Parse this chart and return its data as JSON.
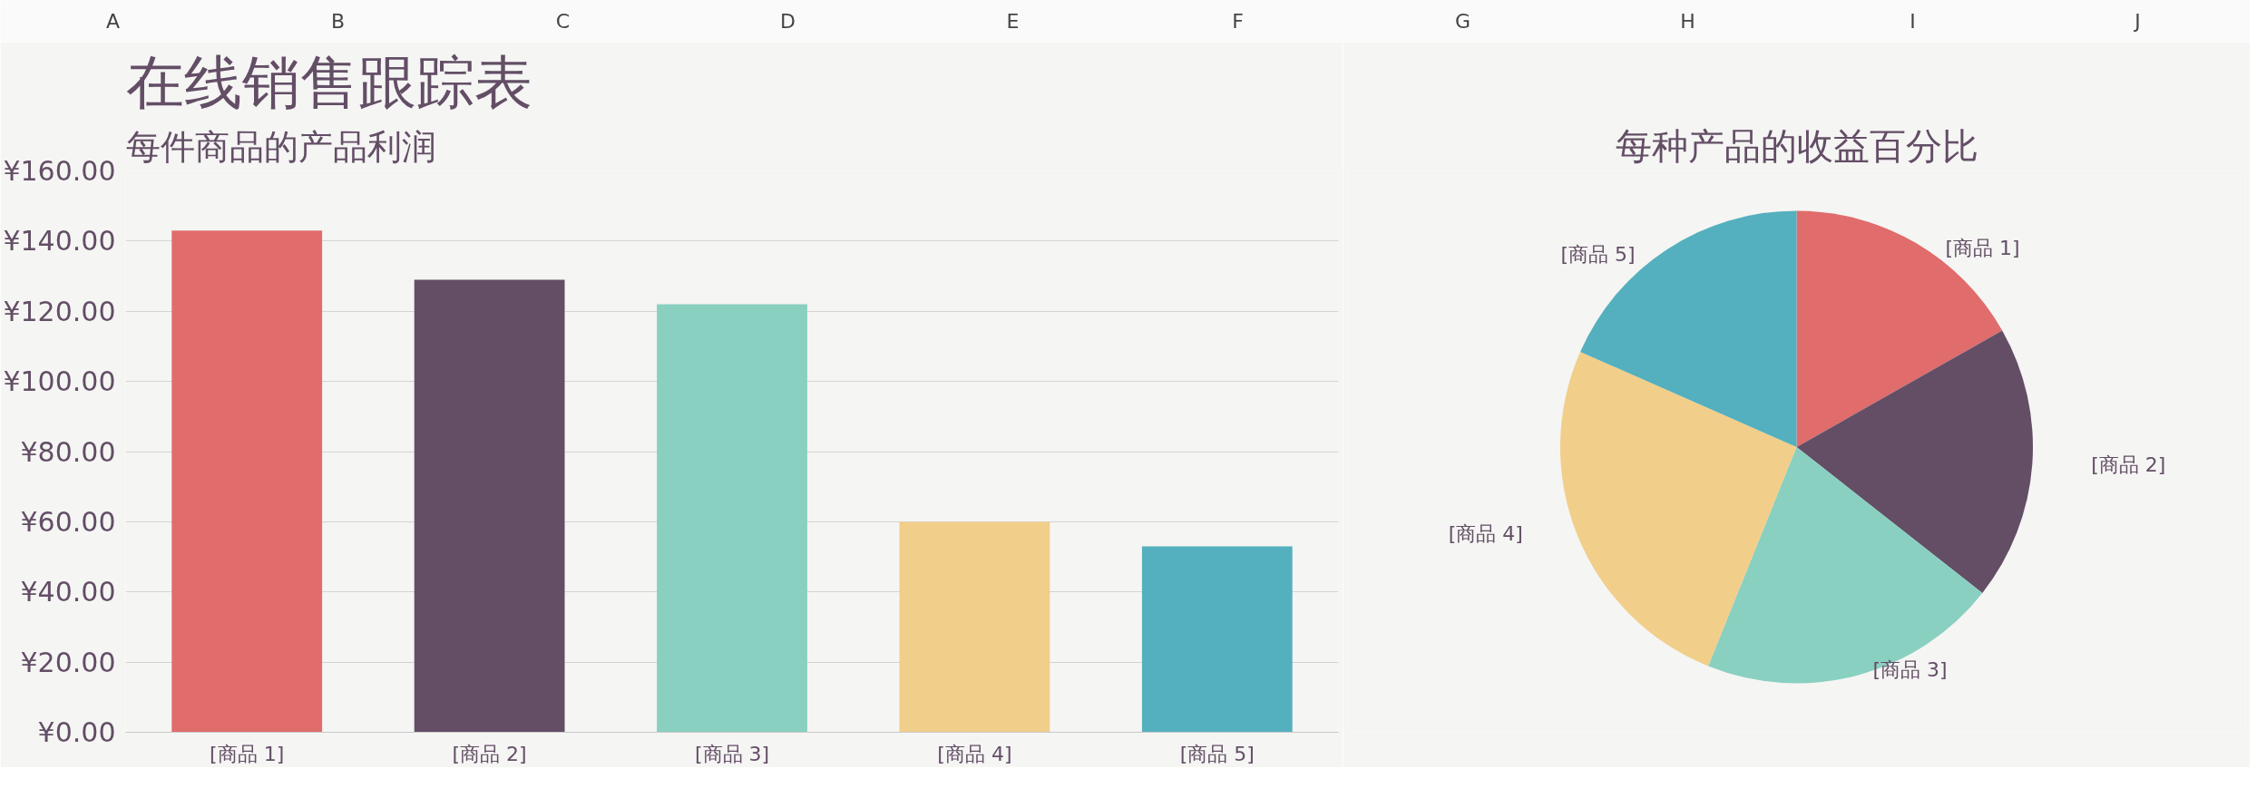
{
  "chart_data": [
    {
      "type": "other",
      "annotations": [
        "A",
        "B",
        "C",
        "D",
        "E",
        "F",
        "G",
        "H",
        "I",
        "J"
      ]
    },
    {
      "type": "bar",
      "title": "在线销售跟踪表",
      "subtitle": "每件商品的产品利润",
      "categories": [
        "[商品 1]",
        "[商品 2]",
        "[商品 3]",
        "[商品 4]",
        "[商品 5]"
      ],
      "values": [
        143,
        129,
        122,
        60,
        53
      ],
      "colors": [
        "#e06c6c",
        "#634e66",
        "#89d0c0",
        "#f1ce8a",
        "#54b0be"
      ],
      "ylim": [
        0,
        160
      ],
      "yticks": [
        {
          "value": 0,
          "label": "¥0.00"
        },
        {
          "value": 20,
          "label": "¥20.00"
        },
        {
          "value": 40,
          "label": "¥40.00"
        },
        {
          "value": 60,
          "label": "¥60.00"
        },
        {
          "value": 80,
          "label": "¥80.00"
        },
        {
          "value": 100,
          "label": "¥100.00"
        },
        {
          "value": 120,
          "label": "¥120.00"
        },
        {
          "value": 140,
          "label": "¥140.00"
        },
        {
          "value": 160,
          "label": "¥160.00"
        }
      ],
      "grid": "y"
    },
    {
      "type": "pie",
      "title": "每种产品的收益百分比",
      "categories": [
        "[商品 1]",
        "[商品 2]",
        "[商品 3]",
        "[商品 4]",
        "[商品 5]"
      ],
      "values": [
        16.8,
        18.8,
        20.5,
        25.5,
        18.4
      ],
      "colors": [
        "#e06c6c",
        "#634e66",
        "#89d0c0",
        "#f1ce8a",
        "#54b0be"
      ]
    }
  ]
}
